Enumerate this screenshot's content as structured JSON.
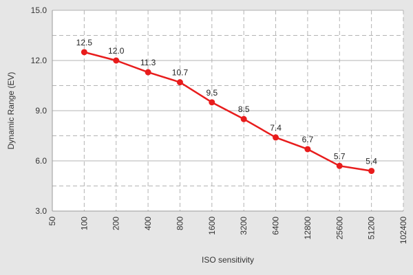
{
  "chart_data": {
    "type": "line",
    "title": "",
    "xlabel": "ISO sensitivity",
    "ylabel": "Dynamic Range (EV)",
    "x_scale": "log2",
    "x_ticks": [
      "50",
      "100",
      "200",
      "400",
      "800",
      "1600",
      "3200",
      "6400",
      "12800",
      "25600",
      "51200",
      "102400"
    ],
    "y_ticks": [
      "3.0",
      "6.0",
      "9.0",
      "12.0",
      "15.0"
    ],
    "ylim": [
      3.0,
      15.0
    ],
    "xlim": [
      50,
      102400
    ],
    "grid": true,
    "legend": "none",
    "series": [
      {
        "x": [
          100,
          200,
          400,
          800,
          1600,
          3200,
          6400,
          12800,
          25600,
          51200
        ],
        "y": [
          12.5,
          12.0,
          11.3,
          10.7,
          9.5,
          8.5,
          7.4,
          6.7,
          5.7,
          5.4
        ],
        "labels": [
          "12.5",
          "12.0",
          "11.3",
          "10.7",
          "9.5",
          "8.5",
          "7.4",
          "6.7",
          "5.7",
          "5.4"
        ],
        "color": "#e81c1c"
      }
    ],
    "colors": {
      "background": "#e6e6e6",
      "plot_background": "#ffffff",
      "grid": "#b3b3b3",
      "axis": "#999999"
    }
  }
}
